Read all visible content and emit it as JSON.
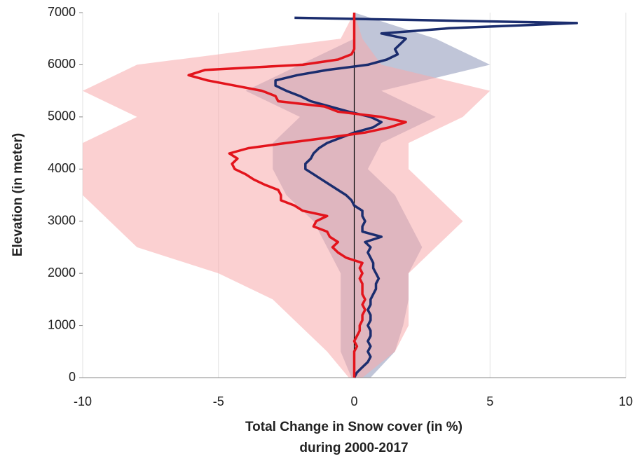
{
  "chart_data": {
    "type": "line",
    "orientation": "vertical",
    "x_label": [
      "Total Change in Snow cover (in %)",
      "during 2000-2017"
    ],
    "y_label": "Elevation (in meter)",
    "xlim": [
      -10,
      10
    ],
    "xticks": [
      -10,
      -5,
      0,
      5,
      10
    ],
    "ylim": [
      0,
      7000
    ],
    "yticks": [
      0,
      1000,
      2000,
      3000,
      4000,
      5000,
      6000,
      7000
    ],
    "grid": true,
    "elevations": [
      0,
      100,
      200,
      300,
      400,
      500,
      600,
      700,
      800,
      900,
      1000,
      1100,
      1200,
      1300,
      1400,
      1500,
      1600,
      1700,
      1800,
      1900,
      2000,
      2100,
      2200,
      2300,
      2400,
      2500,
      2600,
      2700,
      2800,
      2900,
      3000,
      3100,
      3200,
      3300,
      3400,
      3500,
      3600,
      3700,
      3800,
      3900,
      4000,
      4100,
      4200,
      4300,
      4400,
      4500,
      4600,
      4700,
      4800,
      4900,
      5000,
      5100,
      5200,
      5300,
      5400,
      5500,
      5600,
      5700,
      5800,
      5900,
      6000,
      6100,
      6200,
      6300,
      6400,
      6500,
      6600,
      6700,
      6800,
      6900,
      7000
    ],
    "spread_elevations": [
      0,
      500,
      1000,
      1500,
      2000,
      2500,
      3000,
      3500,
      4000,
      4500,
      5000,
      5500,
      6000,
      6500,
      7000
    ],
    "series": [
      {
        "color": "#1b2d6e",
        "spread_color": "#8c95b8",
        "values": [
          0,
          0.1,
          0.3,
          0.5,
          0.6,
          0.5,
          0.6,
          0.5,
          0.6,
          0.6,
          0.5,
          0.6,
          0.6,
          0.5,
          0.6,
          0.6,
          0.7,
          0.8,
          0.8,
          0.9,
          0.8,
          0.7,
          0.7,
          0.6,
          0.5,
          0.6,
          0.4,
          1.0,
          0.3,
          0.3,
          0.4,
          0.3,
          0.3,
          0.0,
          -0.1,
          -0.3,
          -0.6,
          -0.9,
          -1.2,
          -1.5,
          -1.8,
          -1.8,
          -1.6,
          -1.5,
          -1.3,
          -1.0,
          -0.5,
          0.0,
          0.7,
          1.0,
          0.6,
          -0.2,
          -0.9,
          -1.6,
          -2.0,
          -2.5,
          -2.9,
          -2.9,
          -2.1,
          -1.0,
          0.5,
          1.2,
          1.6,
          1.5,
          1.7,
          1.9,
          1.0,
          3.5,
          8.2,
          -2.2,
          null
        ],
        "spread_low": [
          -0.1,
          -0.5,
          -0.5,
          -0.5,
          -0.5,
          -1,
          -1.5,
          -2.5,
          -3,
          -3,
          -2,
          -4,
          -2,
          0,
          0
        ],
        "spread_high": [
          0.6,
          1.5,
          1.8,
          2,
          2,
          2.5,
          2,
          1.5,
          0.5,
          1,
          3,
          1,
          5,
          3,
          0
        ]
      },
      {
        "color": "#e3141c",
        "spread_color": "#f7a9ac",
        "values": [
          0,
          0,
          0,
          0,
          0,
          0,
          0.1,
          0,
          0.1,
          0.2,
          0.2,
          0.3,
          0.3,
          0.4,
          0.3,
          0.4,
          0.3,
          0.3,
          0.3,
          0.2,
          0.3,
          0.2,
          0.3,
          -0.3,
          -0.6,
          -0.8,
          -0.6,
          -0.9,
          -1.0,
          -1.5,
          -1.4,
          -1.0,
          -1.9,
          -2.2,
          -2.7,
          -2.7,
          -2.8,
          -3.3,
          -3.7,
          -4.0,
          -4.4,
          -4.5,
          -4.3,
          -4.6,
          -3.9,
          -2.5,
          -1.0,
          0.4,
          1.3,
          1.9,
          1.0,
          -0.6,
          -1.1,
          -2.8,
          -2.9,
          -3.4,
          -4.4,
          -5.4,
          -6.1,
          -5.5,
          -1.9,
          -0.6,
          -0.1,
          0,
          0,
          0,
          0,
          0,
          0,
          0,
          0
        ],
        "spread_low": [
          -0.2,
          -1,
          -2,
          -3,
          -5,
          -8,
          -9,
          -10,
          -10,
          -10,
          -8,
          -10,
          -8,
          -0.5,
          0
        ],
        "spread_high": [
          0.3,
          1.5,
          2,
          2,
          2,
          3,
          4,
          3,
          2,
          2,
          4,
          5,
          1,
          0.3,
          0
        ]
      }
    ]
  }
}
